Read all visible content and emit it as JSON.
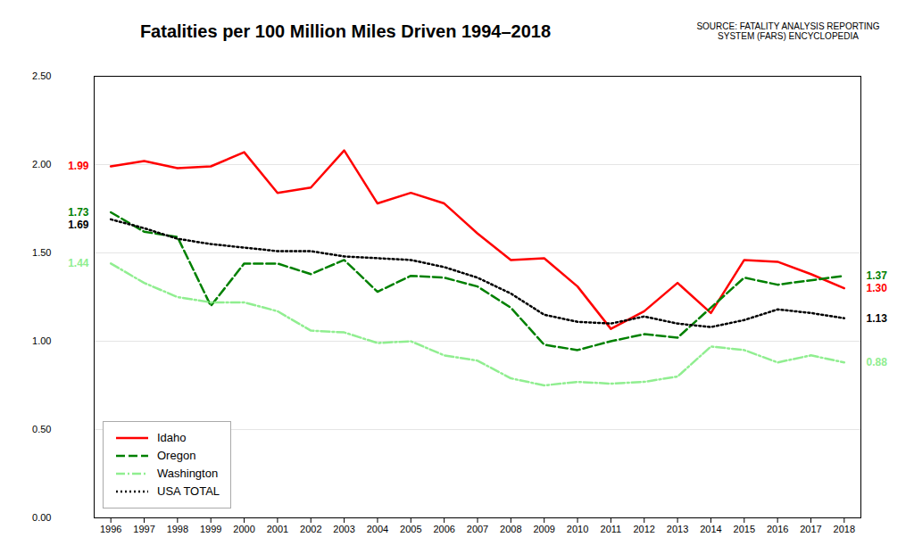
{
  "chart_data": {
    "type": "line",
    "title": "Fatalities per 100 Million Miles Driven 1994–2018",
    "caption": "SOURCE: FATALITY ANALYSIS REPORTING\nSYSTEM (FARS) ENCYCLOPEDIA",
    "x": [
      1996,
      1997,
      1998,
      1999,
      2000,
      2001,
      2002,
      2003,
      2004,
      2005,
      2006,
      2007,
      2008,
      2009,
      2010,
      2011,
      2012,
      2013,
      2014,
      2015,
      2016,
      2017,
      2018
    ],
    "series": [
      {
        "name": "Idaho",
        "color": "#ff0000",
        "line_style": "solid",
        "values": [
          1.99,
          2.02,
          1.98,
          1.99,
          2.07,
          1.84,
          1.87,
          2.08,
          1.78,
          1.84,
          1.78,
          1.61,
          1.46,
          1.47,
          1.31,
          1.07,
          1.17,
          1.33,
          1.16,
          1.46,
          1.45,
          1.38,
          1.3
        ]
      },
      {
        "name": "Oregon",
        "color": "#008000",
        "line_style": "dashed",
        "x": [
          1996,
          1997,
          1998,
          1999,
          2000,
          2001,
          2002,
          2003,
          2004,
          2005,
          2006,
          2007,
          2008,
          2009,
          2010,
          2011,
          2012,
          2013,
          2015,
          2016,
          2018
        ],
        "values": [
          1.73,
          1.62,
          1.59,
          1.2,
          1.44,
          1.44,
          1.38,
          1.46,
          1.28,
          1.37,
          1.36,
          1.31,
          1.19,
          0.98,
          0.95,
          1.0,
          1.04,
          1.02,
          1.36,
          1.32,
          1.37
        ]
      },
      {
        "name": "Washington",
        "color": "#90ee90",
        "line_style": "dashdot",
        "values": [
          1.44,
          1.33,
          1.25,
          1.22,
          1.22,
          1.17,
          1.06,
          1.05,
          0.99,
          1.0,
          0.92,
          0.89,
          0.79,
          0.75,
          0.77,
          0.76,
          0.77,
          0.8,
          0.97,
          0.95,
          0.88,
          0.92,
          0.88
        ]
      },
      {
        "name": "USA TOTAL",
        "color": "#000000",
        "line_style": "dotted",
        "values": [
          1.69,
          1.64,
          1.58,
          1.55,
          1.53,
          1.51,
          1.51,
          1.48,
          1.47,
          1.46,
          1.42,
          1.36,
          1.27,
          1.15,
          1.11,
          1.1,
          1.14,
          1.1,
          1.08,
          1.12,
          1.18,
          1.16,
          1.13
        ]
      }
    ],
    "xlim": [
      1995.5,
      2018.5
    ],
    "xticks": [
      1996,
      1997,
      1998,
      1999,
      2000,
      2001,
      2002,
      2003,
      2004,
      2005,
      2006,
      2007,
      2008,
      2009,
      2010,
      2011,
      2012,
      2013,
      2014,
      2015,
      2016,
      2017,
      2018
    ],
    "ylim": [
      0.0,
      2.5
    ],
    "yticks": [
      {
        "value": 0.0,
        "label": "0.00"
      },
      {
        "value": 0.5,
        "label": "0.50"
      },
      {
        "value": 1.0,
        "label": "1.00"
      },
      {
        "value": 1.5,
        "label": "1.50"
      },
      {
        "value": 2.0,
        "label": "2.00"
      },
      {
        "value": 2.5,
        "label": "2.50"
      }
    ],
    "grid": true,
    "legend": "lower left",
    "annotations": [
      {
        "text": "1.99",
        "x": 1996,
        "y": 1.99,
        "color": "#ff0000"
      },
      {
        "text": "1.73",
        "x": 1996,
        "y": 1.73,
        "color": "#008000"
      },
      {
        "text": "1.69",
        "x": 1996,
        "y": 1.69,
        "color": "#000000"
      },
      {
        "text": "1.44",
        "x": 1996,
        "y": 1.44,
        "color": "#90ee90"
      },
      {
        "text": "1.37",
        "x": 2018,
        "y": 1.37,
        "color": "#008000"
      },
      {
        "text": "1.30",
        "x": 2018,
        "y": 1.3,
        "color": "#ff0000"
      },
      {
        "text": "1.13",
        "x": 2018,
        "y": 1.13,
        "color": "#000000"
      },
      {
        "text": "0.88",
        "x": 2018,
        "y": 0.88,
        "color": "#90ee90"
      }
    ]
  }
}
